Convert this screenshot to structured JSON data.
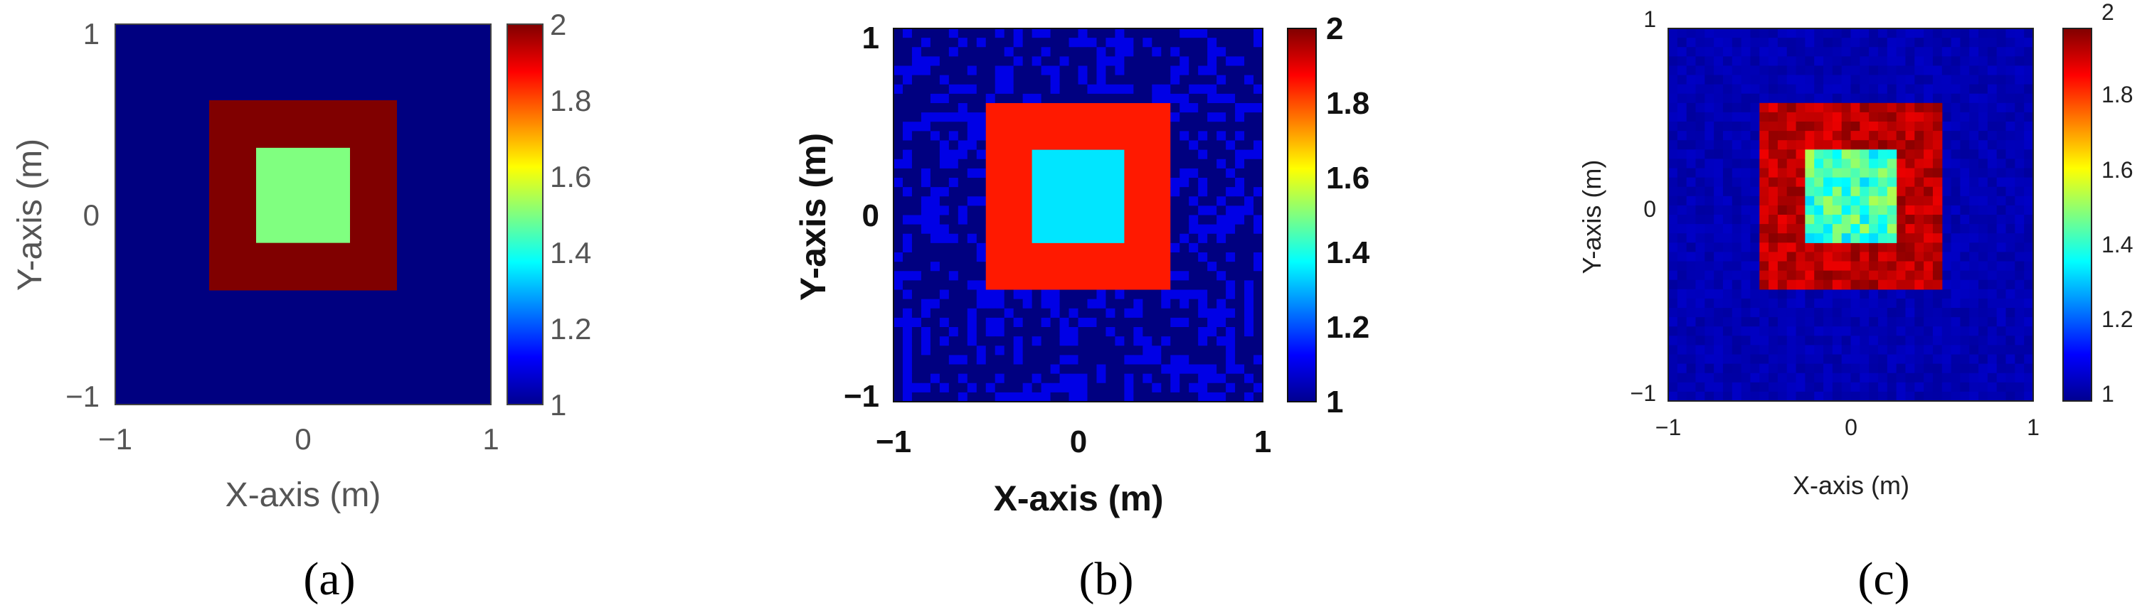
{
  "colors": {
    "background": "#000080",
    "dark_red": "#800000",
    "light_green": "#80ff80",
    "orange": "#ff4a00",
    "sky_blue": "#00b8ff"
  },
  "chart_data": [
    {
      "type": "heatmap",
      "panel_label": "(a)",
      "xlabel": "X-axis (m)",
      "ylabel": "Y-axis (m)",
      "x_ticks": [
        "−1",
        "0",
        "1"
      ],
      "y_ticks": [
        "1",
        "0",
        "−1"
      ],
      "xlim": [
        -1,
        1
      ],
      "ylim": [
        -1,
        1
      ],
      "colorbar": {
        "range": [
          1,
          2
        ],
        "ticks": [
          "2",
          "1.8",
          "1.6",
          "1.4",
          "1.2",
          "1"
        ]
      },
      "background_value": 1.0,
      "regions": [
        {
          "x": [
            -0.5,
            0.5
          ],
          "y": [
            -0.4,
            0.6
          ],
          "value": 2.0
        },
        {
          "x": [
            -0.25,
            0.25
          ],
          "y": [
            -0.15,
            0.35
          ],
          "value": 1.5
        }
      ],
      "noise": "none"
    },
    {
      "type": "heatmap",
      "panel_label": "(b)",
      "xlabel": "X-axis (m)",
      "ylabel": "Y-axis (m)",
      "x_ticks": [
        "−1",
        "0",
        "1"
      ],
      "y_ticks": [
        "1",
        "0",
        "−1"
      ],
      "xlim": [
        -1,
        1
      ],
      "ylim": [
        -1,
        1
      ],
      "colorbar": {
        "range": [
          1,
          2
        ],
        "ticks": [
          "2",
          "1.8",
          "1.6",
          "1.4",
          "1.2",
          "1"
        ]
      },
      "background_value": 1.0,
      "regions": [
        {
          "x": [
            -0.5,
            0.5
          ],
          "y": [
            -0.4,
            0.6
          ],
          "value": 1.85
        },
        {
          "x": [
            -0.25,
            0.25
          ],
          "y": [
            -0.15,
            0.35
          ],
          "value": 1.35
        }
      ],
      "noise": "speckled background 1.0–1.1"
    },
    {
      "type": "heatmap",
      "panel_label": "(c)",
      "xlabel": "X-axis (m)",
      "ylabel": "Y-axis (m)",
      "x_ticks": [
        "−1",
        "0",
        "1"
      ],
      "y_ticks": [
        "1",
        "0",
        "−1"
      ],
      "xlim": [
        -1,
        1
      ],
      "ylim": [
        -1,
        1
      ],
      "colorbar": {
        "range": [
          1,
          2
        ],
        "ticks": [
          "2",
          "1.8",
          "1.6",
          "1.4",
          "1.2",
          "1"
        ]
      },
      "background_value": 1.03,
      "regions": [
        {
          "x": [
            -0.5,
            0.5
          ],
          "y": [
            -0.4,
            0.6
          ],
          "value": 1.95
        },
        {
          "x": [
            -0.25,
            0.25
          ],
          "y": [
            -0.15,
            0.35
          ],
          "value": 1.45
        }
      ],
      "noise": "mottled reconstruction"
    }
  ]
}
